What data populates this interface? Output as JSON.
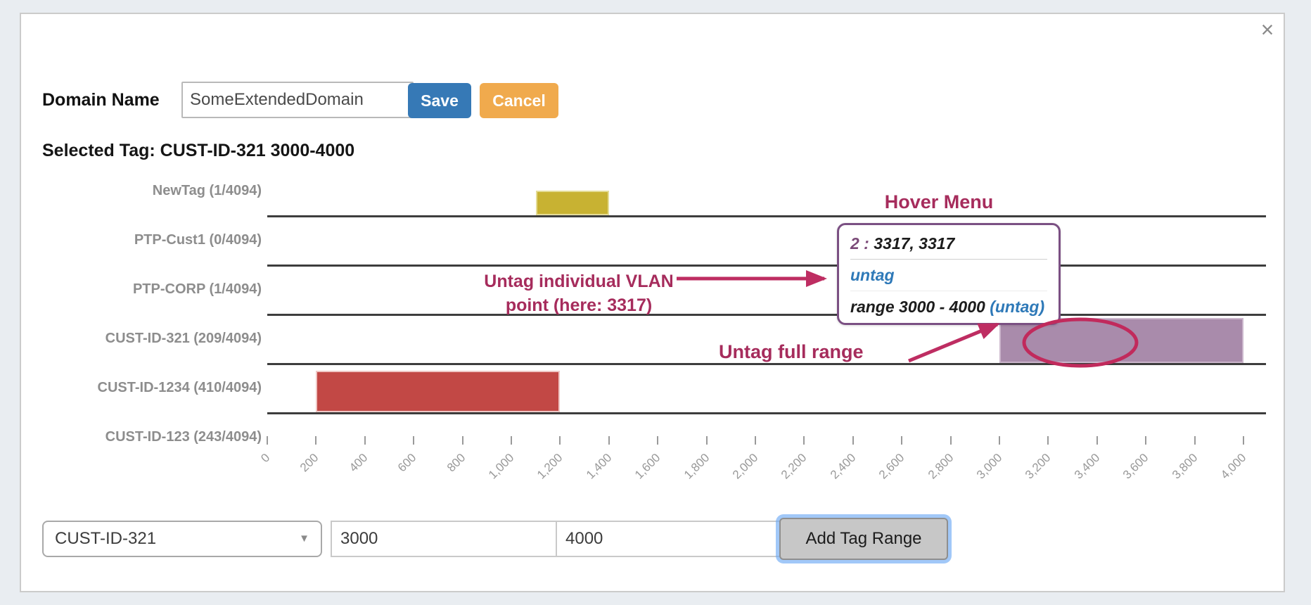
{
  "window": {
    "close_icon": "×",
    "background_color": "#e9edf1",
    "modal_color": "#ffffff"
  },
  "header": {
    "domain_label": "Domain Name",
    "domain_value": "SomeExtendedDomain",
    "save_label": "Save",
    "cancel_label": "Cancel",
    "save_color": "#3679b6",
    "cancel_color": "#f0aa4d"
  },
  "selected_tag_line": "Selected Tag: CUST-ID-321 3000-4000",
  "chart_data": {
    "type": "bar",
    "orientation": "horizontal VLAN ranges, one row per tag",
    "x_axis": {
      "min": 0,
      "max": 4000,
      "step": 200,
      "tick_labels": [
        "0",
        "200",
        "400",
        "600",
        "800",
        "1,000",
        "1,200",
        "1,400",
        "1,600",
        "1,800",
        "2,000",
        "2,200",
        "2,400",
        "2,600",
        "2,800",
        "3,000",
        "3,200",
        "3,400",
        "3,600",
        "3,800",
        "4,000"
      ]
    },
    "rows": [
      {
        "label": "NewTag (1/4094)",
        "range": [
          1100,
          1400
        ],
        "color": "#c8b232",
        "border": "#e4dc96",
        "height_frac": 0.5
      },
      {
        "label": "PTP-Cust1 (0/4094)",
        "range": null
      },
      {
        "label": "PTP-CORP (1/4094)",
        "range": null
      },
      {
        "label": "CUST-ID-321 (209/4094)",
        "range": [
          3000,
          4000
        ],
        "color": "#a98bab",
        "border": "#cbb6cc",
        "height_frac": 0.92
      },
      {
        "label": "CUST-ID-1234 (410/4094)",
        "range": [
          200,
          1200
        ],
        "color": "#c24845",
        "border": "#efc7c5",
        "height_frac": 0.85
      },
      {
        "label": "CUST-ID-123 (243/4094)",
        "range": null
      }
    ],
    "grid": "row baselines only",
    "line_color": "#3d3d3d"
  },
  "hover_menu": {
    "title": "Hover Menu",
    "border_color": "#7b5083",
    "items": [
      {
        "parts": [
          {
            "text": "2 : ",
            "style": "purple"
          },
          {
            "text": "3317,  3317",
            "style": "black"
          }
        ]
      },
      {
        "parts": [
          {
            "text": "untag",
            "style": "blue"
          }
        ]
      },
      {
        "parts": [
          {
            "text": "range 3000 - 4000 ",
            "style": "black"
          },
          {
            "text": "(untag)",
            "style": "blue"
          }
        ]
      }
    ]
  },
  "annotations": {
    "untag_point_line1": "Untag individual VLAN",
    "untag_point_line2": "point (here: 3317)",
    "untag_full_range": "Untag full range",
    "text_color": "#a62c5c",
    "arrow_color": "#be2d62",
    "ellipse_color": "#c12a5c"
  },
  "footer": {
    "tag_select_value": "CUST-ID-321",
    "caret_icon": "▼",
    "range_start": "3000",
    "range_end": "4000",
    "add_button_label": "Add Tag Range"
  }
}
